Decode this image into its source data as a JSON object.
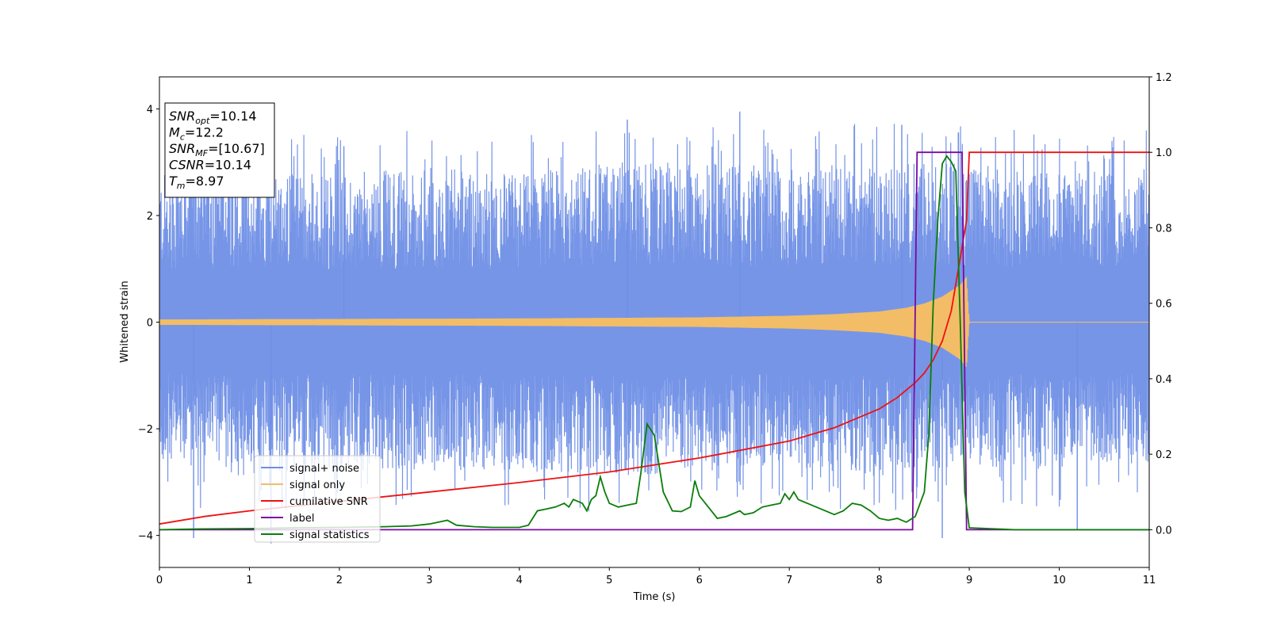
{
  "chart_data": {
    "type": "line",
    "title": "",
    "xlabel": "Time (s)",
    "ylabel": "Whitened strain",
    "xlim": [
      0,
      11
    ],
    "ylim": [
      -4.6,
      4.6
    ],
    "y2lim": [
      -0.1,
      1.2
    ],
    "x_ticks": [
      0,
      1,
      2,
      3,
      4,
      5,
      6,
      7,
      8,
      9,
      10,
      11
    ],
    "x_tick_labels": [
      "0",
      "1",
      "2",
      "3",
      "4",
      "5",
      "6",
      "7",
      "8",
      "9",
      "10",
      "11"
    ],
    "y_ticks": [
      -4,
      -2,
      0,
      2,
      4
    ],
    "y_tick_labels": [
      "−4",
      "−2",
      "0",
      "2",
      "4"
    ],
    "y2_ticks": [
      0.0,
      0.2,
      0.4,
      0.6,
      0.8,
      1.0,
      1.2
    ],
    "y2_tick_labels": [
      "0.0",
      "0.2",
      "0.4",
      "0.6",
      "0.8",
      "1.0",
      "1.2"
    ],
    "grid": false,
    "legend_position": "lower-left",
    "annotation": {
      "lines": [
        {
          "sym": "SNR",
          "sub": "opt",
          "val": "=10.14"
        },
        {
          "sym": "M",
          "sub": "c",
          "val": "=12.2"
        },
        {
          "sym": "SNR",
          "sub": "MF",
          "val": "=[10.67]"
        },
        {
          "sym": "CSNR",
          "sub": "",
          "val": "=10.14"
        },
        {
          "sym": "T",
          "sub": "m",
          "val": "=8.97"
        }
      ]
    },
    "series": [
      {
        "name": "signal+ noise",
        "axis": "left",
        "color": "#6f8fe6",
        "style": "dense-noise",
        "envelope": {
          "x": [
            0,
            1,
            2,
            3,
            4,
            5,
            6,
            7,
            8,
            9,
            10,
            11
          ],
          "upper": [
            2.8,
            2.9,
            2.8,
            2.9,
            2.8,
            3.0,
            3.0,
            2.9,
            3.0,
            3.0,
            2.8,
            2.9
          ],
          "lower": [
            -2.7,
            -2.9,
            -2.8,
            -2.8,
            -2.8,
            -2.9,
            -2.8,
            -2.7,
            -2.9,
            -2.7,
            -2.8,
            -2.7
          ]
        },
        "peaks": [
          {
            "x": 0.38,
            "y": -4.05
          },
          {
            "x": 1.24,
            "y": -4.15
          },
          {
            "x": 2.05,
            "y": 3.3
          },
          {
            "x": 5.2,
            "y": 3.8
          },
          {
            "x": 6.45,
            "y": 3.95
          },
          {
            "x": 8.25,
            "y": 3.7
          },
          {
            "x": 8.7,
            "y": -4.05
          },
          {
            "x": 8.88,
            "y": 3.55
          },
          {
            "x": 10.2,
            "y": -3.9
          }
        ]
      },
      {
        "name": "signal only",
        "axis": "left",
        "color": "#f2bd66",
        "envelope": {
          "x": [
            0,
            2,
            4,
            6,
            7,
            7.5,
            8,
            8.3,
            8.5,
            8.7,
            8.9,
            8.97,
            9.0,
            11
          ],
          "amp": [
            0.05,
            0.06,
            0.07,
            0.09,
            0.12,
            0.15,
            0.2,
            0.27,
            0.35,
            0.48,
            0.7,
            0.85,
            0.0,
            0.0
          ]
        }
      },
      {
        "name": "cumilative SNR",
        "axis": "right",
        "color": "#ee1111",
        "x": [
          0.0,
          0.5,
          1.0,
          2.0,
          3.0,
          4.0,
          5.0,
          6.0,
          7.0,
          7.5,
          8.0,
          8.2,
          8.4,
          8.5,
          8.6,
          8.7,
          8.8,
          8.9,
          8.97,
          9.0,
          11.0
        ],
        "y": [
          0.015,
          0.035,
          0.05,
          0.075,
          0.1,
          0.125,
          0.153,
          0.19,
          0.235,
          0.27,
          0.32,
          0.35,
          0.39,
          0.415,
          0.45,
          0.5,
          0.58,
          0.72,
          0.82,
          1.0,
          1.0
        ]
      },
      {
        "name": "label",
        "axis": "right",
        "color": "#7a0aa0",
        "x": [
          0.0,
          8.37,
          8.42,
          8.92,
          8.97,
          11.0
        ],
        "y": [
          0.0,
          0.0,
          1.0,
          1.0,
          0.0,
          0.0
        ]
      },
      {
        "name": "signal statistics",
        "axis": "right",
        "color": "#0a7d0a",
        "x": [
          0.0,
          0.5,
          1.0,
          1.5,
          2.0,
          2.5,
          2.8,
          3.0,
          3.1,
          3.2,
          3.3,
          3.5,
          3.7,
          4.0,
          4.1,
          4.2,
          4.3,
          4.4,
          4.5,
          4.55,
          4.6,
          4.65,
          4.7,
          4.75,
          4.8,
          4.85,
          4.9,
          4.95,
          5.0,
          5.1,
          5.2,
          5.3,
          5.35,
          5.42,
          5.5,
          5.6,
          5.7,
          5.8,
          5.9,
          5.95,
          6.0,
          6.1,
          6.2,
          6.3,
          6.4,
          6.45,
          6.5,
          6.6,
          6.7,
          6.8,
          6.9,
          6.95,
          7.0,
          7.05,
          7.1,
          7.2,
          7.3,
          7.4,
          7.5,
          7.6,
          7.7,
          7.8,
          7.9,
          8.0,
          8.1,
          8.2,
          8.3,
          8.4,
          8.5,
          8.55,
          8.6,
          8.65,
          8.7,
          8.75,
          8.8,
          8.85,
          8.9,
          8.95,
          9.0,
          9.5,
          10.0,
          10.5,
          11.0
        ],
        "y": [
          0.0,
          0.002,
          0.003,
          0.005,
          0.006,
          0.008,
          0.01,
          0.015,
          0.02,
          0.025,
          0.012,
          0.008,
          0.006,
          0.006,
          0.012,
          0.05,
          0.055,
          0.06,
          0.07,
          0.06,
          0.08,
          0.075,
          0.07,
          0.05,
          0.08,
          0.09,
          0.14,
          0.1,
          0.07,
          0.06,
          0.065,
          0.07,
          0.15,
          0.28,
          0.25,
          0.1,
          0.05,
          0.048,
          0.06,
          0.13,
          0.09,
          0.06,
          0.03,
          0.035,
          0.045,
          0.05,
          0.04,
          0.045,
          0.06,
          0.065,
          0.07,
          0.095,
          0.08,
          0.1,
          0.08,
          0.07,
          0.06,
          0.05,
          0.04,
          0.05,
          0.07,
          0.065,
          0.05,
          0.03,
          0.025,
          0.03,
          0.02,
          0.035,
          0.1,
          0.25,
          0.6,
          0.82,
          0.97,
          0.99,
          0.975,
          0.95,
          0.55,
          0.1,
          0.005,
          0.0,
          0.0,
          0.0,
          0.0
        ]
      }
    ]
  }
}
